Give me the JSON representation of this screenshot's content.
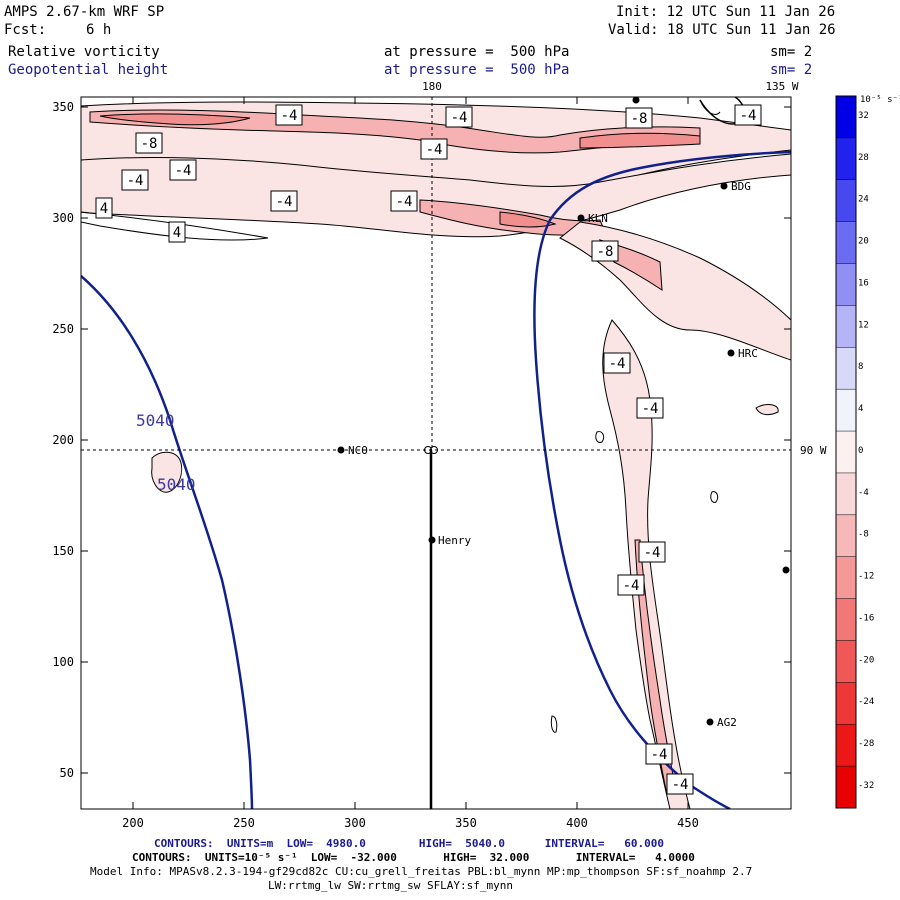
{
  "header": {
    "model": "AMPS 2.67-km WRF SP",
    "init": "Init: 12 UTC Sun 11 Jan 26",
    "fcst_label": "Fcst:",
    "fcst_value": "6 h",
    "valid": "Valid: 18 UTC Sun 11 Jan 26",
    "field1": "Relative vorticity",
    "field1_level": "at pressure =  500 hPa",
    "field1_sm": "sm= 2",
    "field2": "Geopotential height",
    "field2_level": "at pressure =  500 hPa",
    "field2_sm": "sm= 2"
  },
  "map": {
    "top_labels": [
      "180",
      "135 W"
    ],
    "right_label": "90 W",
    "x_ticks": [
      200,
      250,
      300,
      350,
      400,
      450
    ],
    "y_ticks": [
      50,
      100,
      150,
      200,
      250,
      300,
      350
    ],
    "stations": [
      {
        "name": "NCO"
      },
      {
        "name": "Henry"
      },
      {
        "name": "KLN"
      },
      {
        "name": "BDG"
      },
      {
        "name": "HRC"
      },
      {
        "name": "AG2"
      }
    ],
    "vort_labels": [
      "-4",
      "-4",
      "-8",
      "-8",
      "-4",
      "-4",
      "-4",
      "-4",
      "-4",
      "4",
      "4",
      "-4",
      "-8",
      "-4",
      "-4",
      "-4",
      "-4",
      "-4",
      "-4"
    ],
    "height_labels": [
      "5040",
      "5040"
    ]
  },
  "colorbar": {
    "unit": "10⁻⁵ s⁻¹",
    "tick_labels": [
      "32",
      "28",
      "24",
      "20",
      "16",
      "12",
      "8",
      "4",
      "0",
      "-4",
      "-8",
      "-12",
      "-16",
      "-20",
      "-24",
      "-28",
      "-32"
    ],
    "colors": [
      "#0000e6",
      "#2222ee",
      "#4848f0",
      "#6c6cf2",
      "#9090f4",
      "#b4b4f6",
      "#d8d8f8",
      "#f2f2fc",
      "#fcf0f0",
      "#f8d8d8",
      "#f6b8b8",
      "#f49898",
      "#f27878",
      "#f05858",
      "#ee3838",
      "#ec1818",
      "#e60000"
    ]
  },
  "footer": {
    "line1": "CONTOURS:  UNITS=m  LOW=  4980.0        HIGH=  5040.0      INTERVAL=   60.000",
    "line2": "CONTOURS:  UNITS=10⁻⁵ s⁻¹  LOW=  -32.000       HIGH=  32.000       INTERVAL=   4.0000",
    "line3": "Model Info: MPASv8.2.3-194-gf29cd82c CU:cu_grell_freitas PBL:bl_mynn MP:mp_thompson SF:sf_noahmp 2.7",
    "line4": "LW:rrtmg_lw SW:rrtmg_sw SFLAY:sf_mynn"
  }
}
